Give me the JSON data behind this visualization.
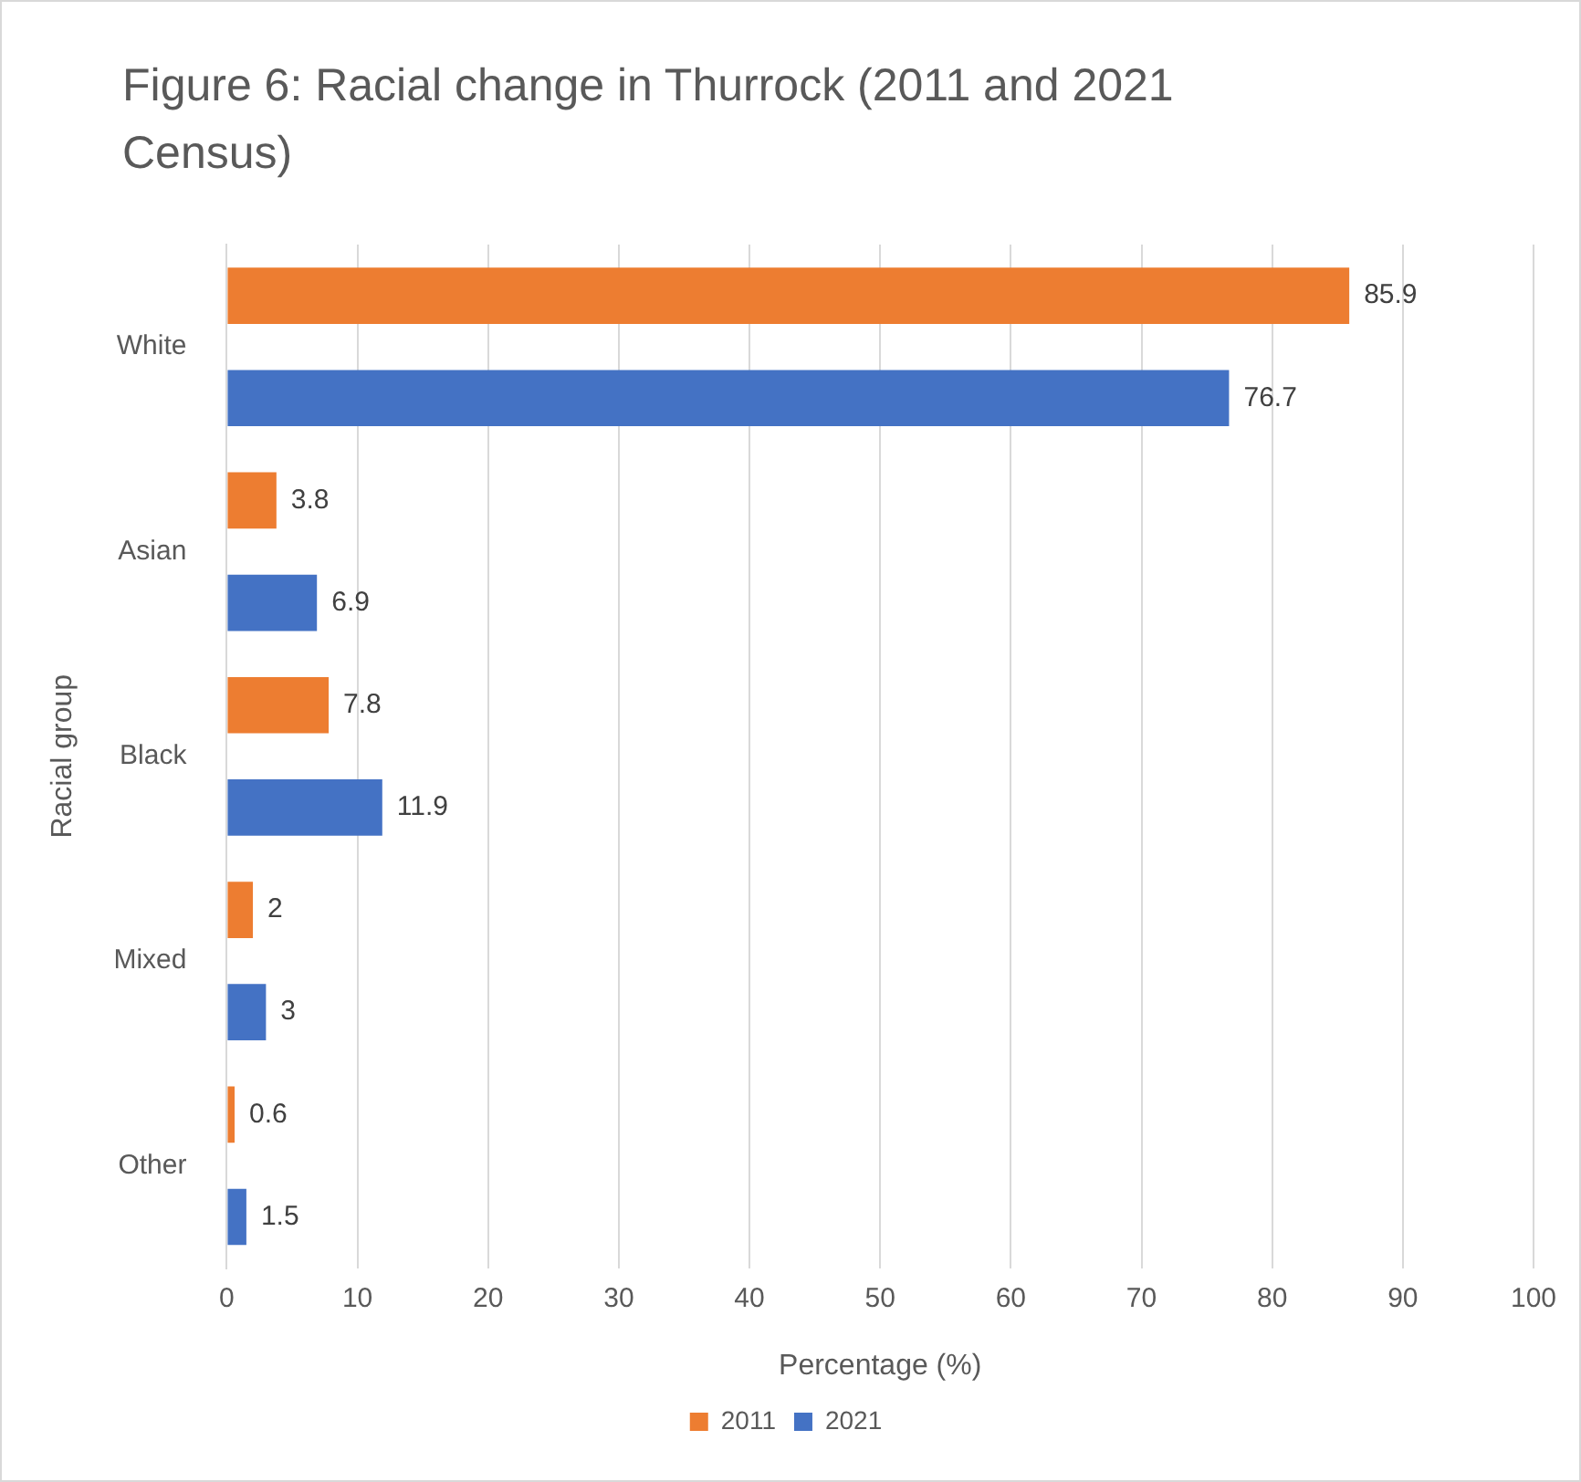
{
  "chart_data": {
    "type": "bar",
    "orientation": "horizontal",
    "title": "Figure 6: Racial change in Thurrock (2011 and 2021 Census)",
    "xlabel": "Percentage (%)",
    "ylabel": "Racial group",
    "categories": [
      "White",
      "Asian",
      "Black",
      "Mixed",
      "Other"
    ],
    "series": [
      {
        "name": "2011",
        "color": "#ed7d31",
        "values": [
          85.9,
          3.8,
          7.8,
          2,
          0.6
        ]
      },
      {
        "name": "2021",
        "color": "#4472c4",
        "values": [
          76.7,
          6.9,
          11.9,
          3,
          1.5
        ]
      }
    ],
    "xlim": [
      0,
      100
    ],
    "xticks": [
      0,
      10,
      20,
      30,
      40,
      50,
      60,
      70,
      80,
      90,
      100
    ],
    "grid": "x",
    "legend": "bottom",
    "data_labels": true
  }
}
